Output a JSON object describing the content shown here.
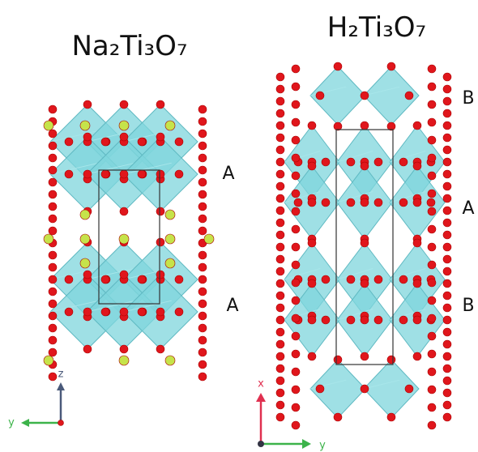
{
  "panels": [
    {
      "title": "Na₂Ti₃O₇",
      "layer_labels": [
        "A",
        "A"
      ],
      "axes": {
        "vertical": "z",
        "horizontal": "y"
      }
    },
    {
      "title": "H₂Ti₃O₇",
      "layer_labels": [
        "B",
        "A",
        "B"
      ],
      "axes": {
        "vertical": "x",
        "horizontal": "y"
      }
    }
  ]
}
